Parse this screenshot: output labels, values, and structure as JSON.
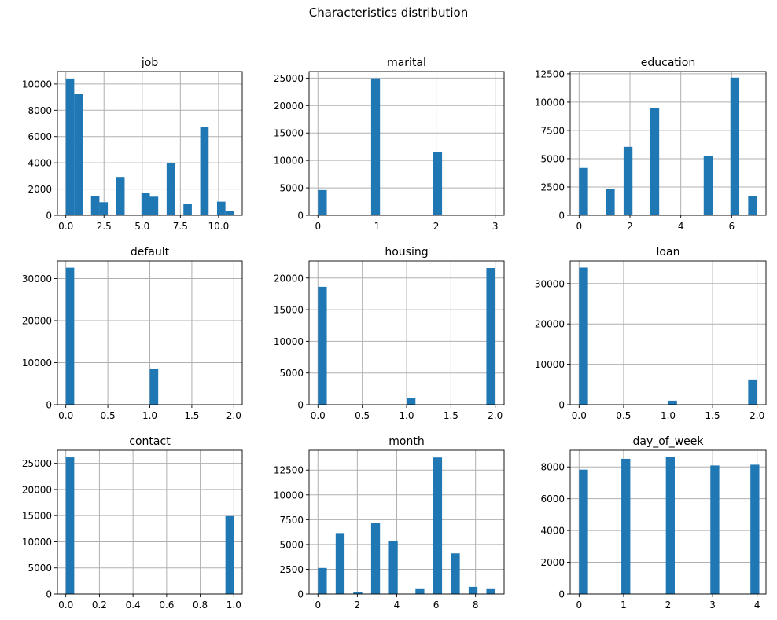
{
  "figure": {
    "title": "Characteristics distribution"
  },
  "style": {
    "bar_color": "#1f77b4",
    "grid_color": "#b0b0b0",
    "axis_color": "#000000"
  },
  "chart_data": [
    {
      "type": "bar",
      "title": "job",
      "xlim": [
        -0.55,
        11.55
      ],
      "ylim": [
        0,
        10950
      ],
      "xticks": [
        0,
        2.5,
        5,
        7.5,
        10
      ],
      "xtick_labels": [
        "0.0",
        "2.5",
        "5.0",
        "7.5",
        "10.0"
      ],
      "yticks": [
        0,
        2000,
        4000,
        6000,
        8000,
        10000
      ],
      "ytick_labels": [
        "0",
        "2000",
        "4000",
        "6000",
        "8000",
        "10000"
      ],
      "grid": true,
      "bin_width": 0.55,
      "bins": [
        [
          0,
          10420
        ],
        [
          0.55,
          9250
        ],
        [
          1.65,
          1460
        ],
        [
          2.2,
          1000
        ],
        [
          3.3,
          2920
        ],
        [
          3.85,
          0
        ],
        [
          4.4,
          0
        ],
        [
          4.95,
          1720
        ],
        [
          5.5,
          1420
        ],
        [
          6.6,
          3970
        ],
        [
          7.15,
          0
        ],
        [
          7.7,
          880
        ],
        [
          8.8,
          6750
        ],
        [
          9.35,
          0
        ],
        [
          9.9,
          1040
        ],
        [
          10.45,
          340
        ]
      ]
    },
    {
      "type": "bar",
      "title": "marital",
      "xlim": [
        -0.15,
        3.15
      ],
      "ylim": [
        0,
        26200
      ],
      "xticks": [
        0,
        1,
        2,
        3
      ],
      "xtick_labels": [
        "0",
        "1",
        "2",
        "3"
      ],
      "yticks": [
        0,
        5000,
        10000,
        15000,
        20000,
        25000
      ],
      "ytick_labels": [
        "0",
        "5000",
        "10000",
        "15000",
        "20000",
        "25000"
      ],
      "grid": true,
      "bin_width": 0.15,
      "bins": [
        [
          0,
          4600
        ],
        [
          0.9,
          24950
        ],
        [
          1.95,
          11550
        ],
        [
          2.85,
          80
        ]
      ]
    },
    {
      "type": "bar",
      "title": "education",
      "xlim": [
        -0.35,
        7.35
      ],
      "ylim": [
        0,
        12700
      ],
      "xticks": [
        0,
        2,
        4,
        6
      ],
      "xtick_labels": [
        "0",
        "2",
        "4",
        "6"
      ],
      "yticks": [
        0,
        2500,
        5000,
        7500,
        10000,
        12500
      ],
      "ytick_labels": [
        "0",
        "2500",
        "5000",
        "7500",
        "10000",
        "12500"
      ],
      "grid": true,
      "bin_width": 0.35,
      "bins": [
        [
          0,
          4180
        ],
        [
          1.05,
          2290
        ],
        [
          1.75,
          6050
        ],
        [
          2.8,
          9510
        ],
        [
          4.55,
          18
        ],
        [
          4.9,
          5240
        ],
        [
          5.95,
          12160
        ],
        [
          6.65,
          1730
        ]
      ]
    },
    {
      "type": "bar",
      "title": "default",
      "xlim": [
        -0.1,
        2.1
      ],
      "ylim": [
        0,
        34200
      ],
      "xticks": [
        0,
        0.5,
        1,
        1.5,
        2
      ],
      "xtick_labels": [
        "0.0",
        "0.5",
        "1.0",
        "1.5",
        "2.0"
      ],
      "yticks": [
        0,
        10000,
        20000,
        30000
      ],
      "ytick_labels": [
        "0",
        "10000",
        "20000",
        "30000"
      ],
      "grid": true,
      "bin_width": 0.1,
      "bins": [
        [
          0,
          32590
        ],
        [
          1,
          8600
        ],
        [
          1.9,
          3
        ]
      ]
    },
    {
      "type": "bar",
      "title": "housing",
      "xlim": [
        -0.1,
        2.1
      ],
      "ylim": [
        0,
        22700
      ],
      "xticks": [
        0,
        0.5,
        1,
        1.5,
        2
      ],
      "xtick_labels": [
        "0.0",
        "0.5",
        "1.0",
        "1.5",
        "2.0"
      ],
      "yticks": [
        0,
        5000,
        10000,
        15000,
        20000
      ],
      "ytick_labels": [
        "0",
        "5000",
        "10000",
        "15000",
        "20000"
      ],
      "grid": true,
      "bin_width": 0.1,
      "bins": [
        [
          0,
          18620
        ],
        [
          1,
          990
        ],
        [
          1.9,
          21580
        ]
      ]
    },
    {
      "type": "bar",
      "title": "loan",
      "xlim": [
        -0.1,
        2.1
      ],
      "ylim": [
        0,
        35600
      ],
      "xticks": [
        0,
        0.5,
        1,
        1.5,
        2
      ],
      "xtick_labels": [
        "0.0",
        "0.5",
        "1.0",
        "1.5",
        "2.0"
      ],
      "yticks": [
        0,
        10000,
        20000,
        30000
      ],
      "ytick_labels": [
        "0",
        "10000",
        "20000",
        "30000"
      ],
      "grid": true,
      "bin_width": 0.1,
      "bins": [
        [
          0,
          33950
        ],
        [
          1,
          990
        ],
        [
          1.9,
          6250
        ]
      ]
    },
    {
      "type": "bar",
      "title": "contact",
      "xlim": [
        -0.05,
        1.05
      ],
      "ylim": [
        0,
        27500
      ],
      "xticks": [
        0,
        0.2,
        0.4,
        0.6,
        0.8,
        1
      ],
      "xtick_labels": [
        "0.0",
        "0.2",
        "0.4",
        "0.6",
        "0.8",
        "1.0"
      ],
      "yticks": [
        0,
        5000,
        10000,
        15000,
        20000,
        25000
      ],
      "ytick_labels": [
        "0",
        "5000",
        "10000",
        "15000",
        "20000",
        "25000"
      ],
      "grid": true,
      "bin_width": 0.05,
      "bins": [
        [
          0,
          26140
        ],
        [
          0.95,
          14900
        ]
      ]
    },
    {
      "type": "bar",
      "title": "month",
      "xlim": [
        -0.45,
        9.45
      ],
      "ylim": [
        0,
        14500
      ],
      "xticks": [
        0,
        2,
        4,
        6,
        8
      ],
      "xtick_labels": [
        "0",
        "2",
        "4",
        "6",
        "8"
      ],
      "yticks": [
        0,
        2500,
        5000,
        7500,
        10000,
        12500
      ],
      "ytick_labels": [
        "0",
        "2500",
        "5000",
        "7500",
        "10000",
        "12500"
      ],
      "grid": true,
      "bin_width": 0.45,
      "bins": [
        [
          0,
          2630
        ],
        [
          0.9,
          6150
        ],
        [
          1.8,
          180
        ],
        [
          2.7,
          7170
        ],
        [
          3.6,
          5320
        ],
        [
          4.95,
          570
        ],
        [
          5.85,
          13770
        ],
        [
          6.75,
          4100
        ],
        [
          7.65,
          720
        ],
        [
          8.55,
          570
        ]
      ]
    },
    {
      "type": "bar",
      "title": "day_of_week",
      "xlim": [
        -0.2,
        4.2
      ],
      "ylim": [
        0,
        9050
      ],
      "xticks": [
        0,
        1,
        2,
        3,
        4
      ],
      "xtick_labels": [
        "0",
        "1",
        "2",
        "3",
        "4"
      ],
      "yticks": [
        0,
        2000,
        4000,
        6000,
        8000
      ],
      "ytick_labels": [
        "0",
        "2000",
        "4000",
        "6000",
        "8000"
      ],
      "grid": true,
      "bin_width": 0.2,
      "bins": [
        [
          0,
          7830
        ],
        [
          0.95,
          8510
        ],
        [
          1.95,
          8620
        ],
        [
          2.95,
          8090
        ],
        [
          3.85,
          8140
        ]
      ]
    }
  ]
}
